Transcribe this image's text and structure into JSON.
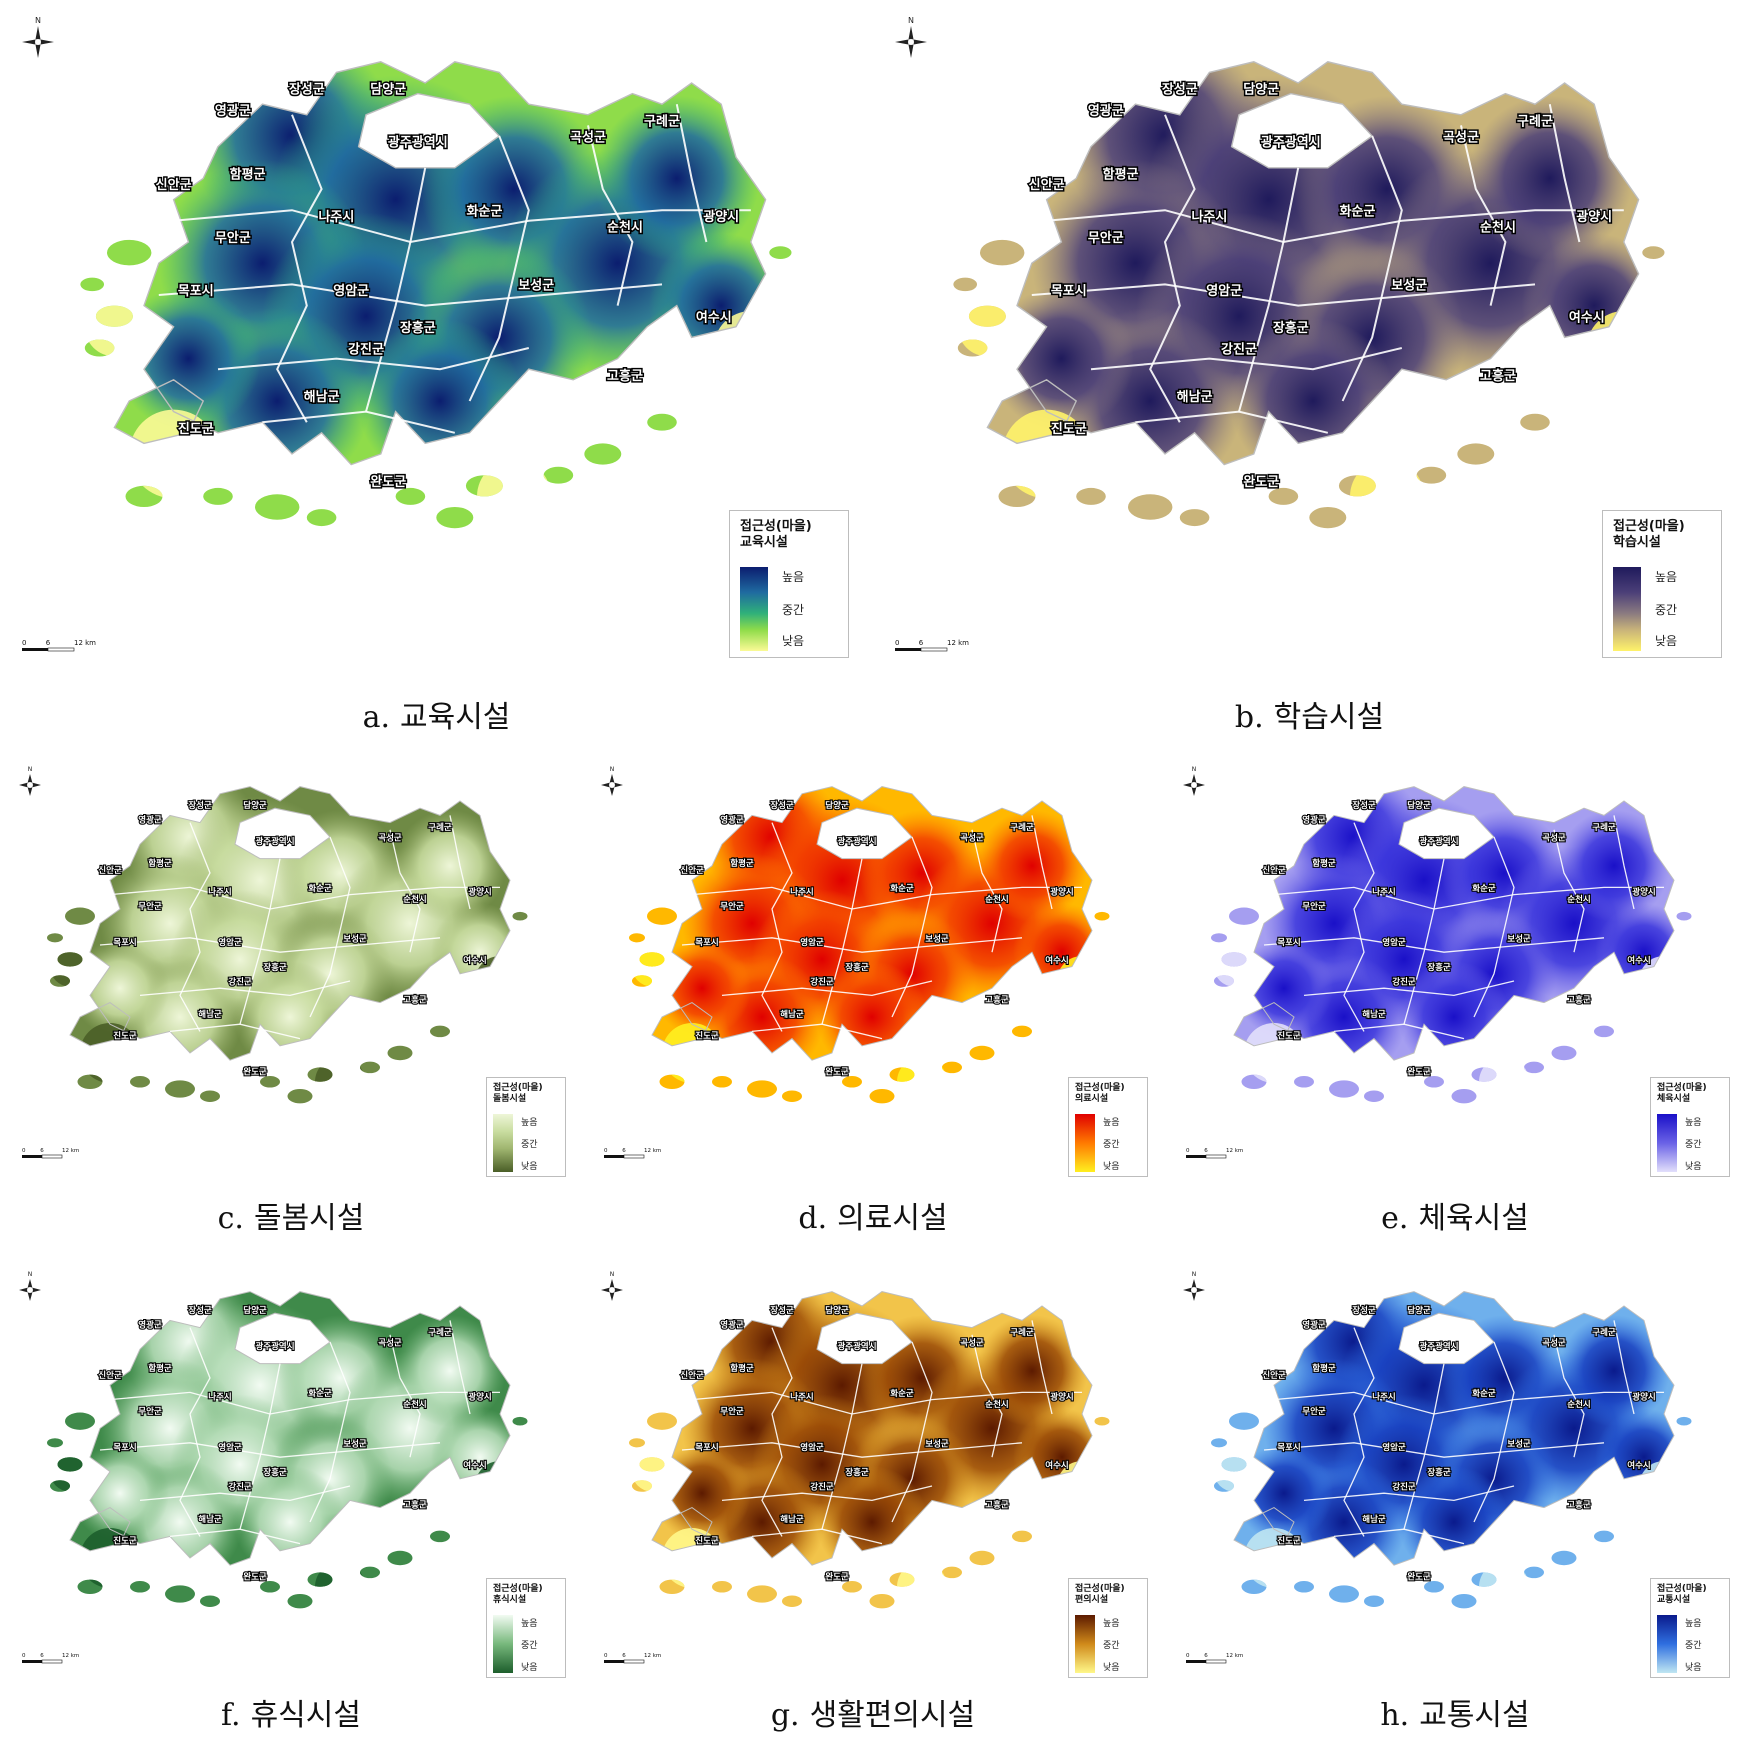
{
  "panels": [
    {
      "id": "a",
      "letter": "a.",
      "title": "교육시설",
      "legend_title": "접근성(마을)",
      "legend_subtitle": "교육시설",
      "labels": [
        "높음",
        "중간",
        "낮음"
      ],
      "palette": [
        "#0b1d6f",
        "#1f6aa0",
        "#2fb07a",
        "#8fdc4a",
        "#fbfa96"
      ]
    },
    {
      "id": "b",
      "letter": "b.",
      "title": "학습시설",
      "legend_title": "접근성(마을)",
      "legend_subtitle": "학습시설",
      "labels": [
        "높음",
        "중간",
        "낮음"
      ],
      "palette": [
        "#1f1a5c",
        "#4b3f78",
        "#8a7a80",
        "#c9b47a",
        "#fff36a"
      ]
    },
    {
      "id": "c",
      "letter": "c.",
      "title": "돌봄시설",
      "legend_title": "접근성(마을)",
      "legend_subtitle": "돌봄시설",
      "labels": [
        "높음",
        "중간",
        "낮음"
      ],
      "palette": [
        "#eef6d8",
        "#c9dda0",
        "#9fb56f",
        "#6f8a45",
        "#4a5e27"
      ]
    },
    {
      "id": "d",
      "letter": "d.",
      "title": "의료시설",
      "legend_title": "접근성(마을)",
      "legend_subtitle": "의료시설",
      "labels": [
        "높음",
        "중간",
        "낮음"
      ],
      "palette": [
        "#e00000",
        "#f23c00",
        "#ff7a00",
        "#ffb800",
        "#ffef20"
      ]
    },
    {
      "id": "e",
      "letter": "e.",
      "title": "체육시설",
      "legend_title": "접근성(마을)",
      "legend_subtitle": "체육시설",
      "labels": [
        "높음",
        "중간",
        "낮음"
      ],
      "palette": [
        "#1a10c8",
        "#3a35dc",
        "#6a62e6",
        "#a59ef0",
        "#e2dffb"
      ]
    },
    {
      "id": "f",
      "letter": "f.",
      "title": "휴식시설",
      "legend_title": "접근성(마을)",
      "legend_subtitle": "휴식시설",
      "labels": [
        "높음",
        "중간",
        "낮음"
      ],
      "palette": [
        "#f2fbf2",
        "#b9dfbb",
        "#77b87c",
        "#3f8a4a",
        "#1d5e2c"
      ]
    },
    {
      "id": "g",
      "letter": "g.",
      "title": "생활편의시설",
      "legend_title": "접근성(마을)",
      "legend_subtitle": "편의시설",
      "labels": [
        "높음",
        "중간",
        "낮음"
      ],
      "palette": [
        "#5c1a00",
        "#9a4a06",
        "#d08a1a",
        "#f2c44a",
        "#fff88a"
      ]
    },
    {
      "id": "h",
      "letter": "h.",
      "title": "교통시설",
      "legend_title": "접근성(마을)",
      "legend_subtitle": "교통시설",
      "labels": [
        "높음",
        "중간",
        "낮음"
      ],
      "palette": [
        "#0a1a8c",
        "#1840c0",
        "#2f6fe0",
        "#6fb0ec",
        "#bfe6f2"
      ]
    }
  ],
  "districts": [
    "장성군",
    "담양군",
    "영광군",
    "광주광역시",
    "구례군",
    "곡성군",
    "함평군",
    "신안군",
    "나주시",
    "화순군",
    "순천시",
    "광양시",
    "무안군",
    "목포시",
    "영암군",
    "보성군",
    "여수시",
    "장흥군",
    "강진군",
    "고흥군",
    "해남군",
    "진도군",
    "완도군"
  ],
  "scale": {
    "ticks": [
      "0",
      "6",
      "12 km"
    ]
  },
  "compass_label": "N"
}
